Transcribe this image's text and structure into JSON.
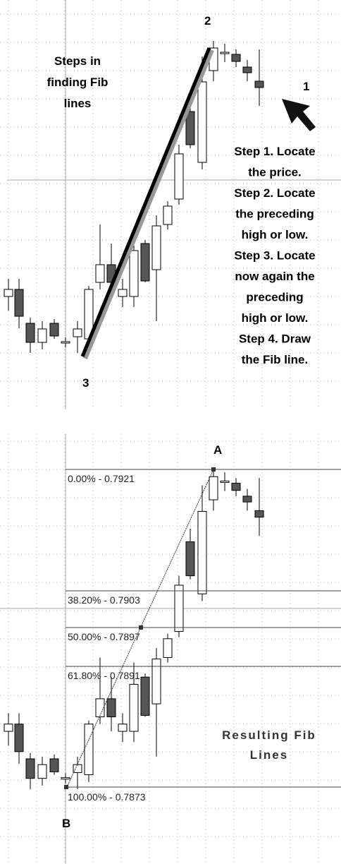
{
  "top_panel": {
    "title_lines": [
      "Steps in",
      "finding Fib",
      "lines"
    ],
    "point_labels": [
      "2",
      "1",
      "3"
    ],
    "steps_lines": [
      "Step 1. Locate",
      "the price.",
      "Step 2. Locate",
      "the preceding",
      "high or low.",
      "Step 3. Locate",
      "now again the",
      "preceding",
      "high or low.",
      "Step 4. Draw",
      "the Fib line."
    ]
  },
  "bottom_panel": {
    "point_labels": [
      "A",
      "B"
    ],
    "fib_levels": [
      "0.00% - 0.7921",
      "38.20% - 0.7903",
      "50.00% - 0.7897",
      "61.80% - 0.7891",
      "100.00% - 0.7873"
    ],
    "caption_lines": [
      "Resulting Fib",
      "Lines"
    ]
  }
}
